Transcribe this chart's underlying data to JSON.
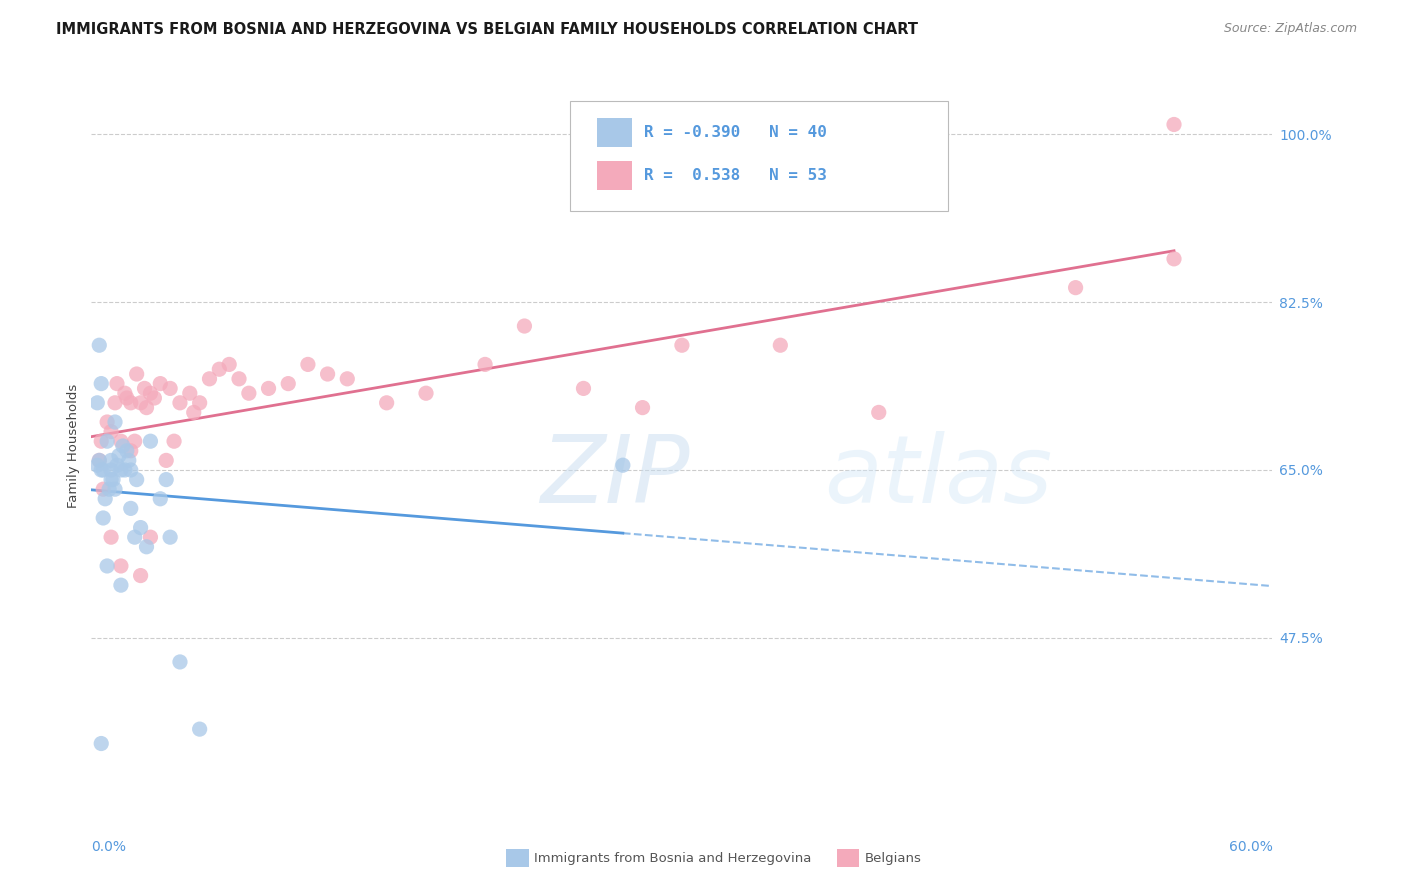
{
  "title": "IMMIGRANTS FROM BOSNIA AND HERZEGOVINA VS BELGIAN FAMILY HOUSEHOLDS CORRELATION CHART",
  "source": "Source: ZipAtlas.com",
  "ylabel": "Family Households",
  "yticks": [
    47.5,
    65.0,
    82.5,
    100.0
  ],
  "ytick_labels": [
    "47.5%",
    "65.0%",
    "82.5%",
    "100.0%"
  ],
  "xmin": 0.0,
  "xmax": 60.0,
  "ymin": 28.0,
  "ymax": 107.0,
  "blue_r": -0.39,
  "blue_n": 40,
  "pink_r": 0.538,
  "pink_n": 53,
  "blue_color": "#a8c8e8",
  "pink_color": "#f4aabb",
  "line_blue_color": "#5599dd",
  "line_pink_color": "#e07090",
  "watermark_color": "#d0e4f4",
  "tick_color": "#5599dd",
  "blue_points_x": [
    0.3,
    0.4,
    0.5,
    0.5,
    0.6,
    0.6,
    0.7,
    0.8,
    0.8,
    0.9,
    1.0,
    1.0,
    1.0,
    1.1,
    1.2,
    1.2,
    1.3,
    1.4,
    1.5,
    1.5,
    1.6,
    1.7,
    1.8,
    1.9,
    2.0,
    2.0,
    2.2,
    2.3,
    2.5,
    2.8,
    3.0,
    3.5,
    3.8,
    4.0,
    4.5,
    5.5,
    0.4,
    0.3,
    27.0,
    0.5
  ],
  "blue_points_y": [
    65.5,
    66.0,
    74.0,
    65.0,
    60.0,
    65.0,
    62.0,
    68.0,
    55.0,
    63.0,
    66.0,
    64.0,
    65.0,
    64.0,
    70.0,
    63.0,
    65.5,
    66.5,
    65.0,
    53.0,
    67.5,
    65.0,
    67.0,
    66.0,
    65.0,
    61.0,
    58.0,
    64.0,
    59.0,
    57.0,
    68.0,
    62.0,
    64.0,
    58.0,
    45.0,
    38.0,
    78.0,
    72.0,
    65.5,
    36.5
  ],
  "pink_points_x": [
    0.4,
    0.5,
    0.8,
    1.0,
    1.2,
    1.3,
    1.5,
    1.7,
    1.8,
    2.0,
    2.0,
    2.2,
    2.3,
    2.5,
    2.7,
    2.8,
    3.0,
    3.2,
    3.5,
    3.8,
    4.0,
    4.2,
    4.5,
    5.0,
    5.2,
    5.5,
    6.0,
    6.5,
    7.0,
    7.5,
    8.0,
    9.0,
    10.0,
    11.0,
    12.0,
    13.0,
    15.0,
    17.0,
    20.0,
    22.0,
    25.0,
    28.0,
    30.0,
    35.0,
    40.0,
    50.0,
    55.0,
    0.6,
    1.0,
    1.5,
    2.5,
    3.0,
    55.0
  ],
  "pink_points_y": [
    66.0,
    68.0,
    70.0,
    69.0,
    72.0,
    74.0,
    68.0,
    73.0,
    72.5,
    67.0,
    72.0,
    68.0,
    75.0,
    72.0,
    73.5,
    71.5,
    73.0,
    72.5,
    74.0,
    66.0,
    73.5,
    68.0,
    72.0,
    73.0,
    71.0,
    72.0,
    74.5,
    75.5,
    76.0,
    74.5,
    73.0,
    73.5,
    74.0,
    76.0,
    75.0,
    74.5,
    72.0,
    73.0,
    76.0,
    80.0,
    73.5,
    71.5,
    78.0,
    78.0,
    71.0,
    84.0,
    87.0,
    63.0,
    58.0,
    55.0,
    54.0,
    58.0,
    101.0
  ],
  "title_fontsize": 10.5,
  "axis_label_fontsize": 9.5,
  "tick_fontsize": 10,
  "source_fontsize": 9
}
